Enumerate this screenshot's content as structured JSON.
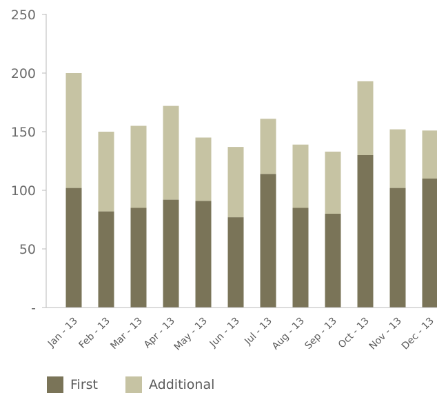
{
  "chart_data": {
    "type": "bar",
    "stacked": true,
    "categories": [
      "Jan - 13",
      "Feb - 13",
      "Mar - 13",
      "Apr - 13",
      "May - 13",
      "Jun - 13",
      "Jul - 13",
      "Aug - 13",
      "Sep - 13",
      "Oct - 13",
      "Nov - 13",
      "Dec - 13"
    ],
    "series": [
      {
        "name": "First",
        "color": "#7a7458",
        "values": [
          102,
          82,
          85,
          92,
          91,
          77,
          114,
          85,
          80,
          130,
          102,
          110
        ]
      },
      {
        "name": "Additional",
        "color": "#c6c3a3",
        "values": [
          98,
          68,
          70,
          80,
          54,
          60,
          47,
          54,
          53,
          63,
          50,
          41
        ]
      }
    ],
    "ylim": [
      0,
      250
    ],
    "yticks": [
      0,
      50,
      100,
      150,
      200,
      250
    ],
    "ytick_labels": [
      "-",
      "50",
      "100",
      "150",
      "200",
      "250"
    ],
    "grid": false,
    "legend_position": "bottom-left",
    "title": "",
    "xlabel": "",
    "ylabel": ""
  }
}
